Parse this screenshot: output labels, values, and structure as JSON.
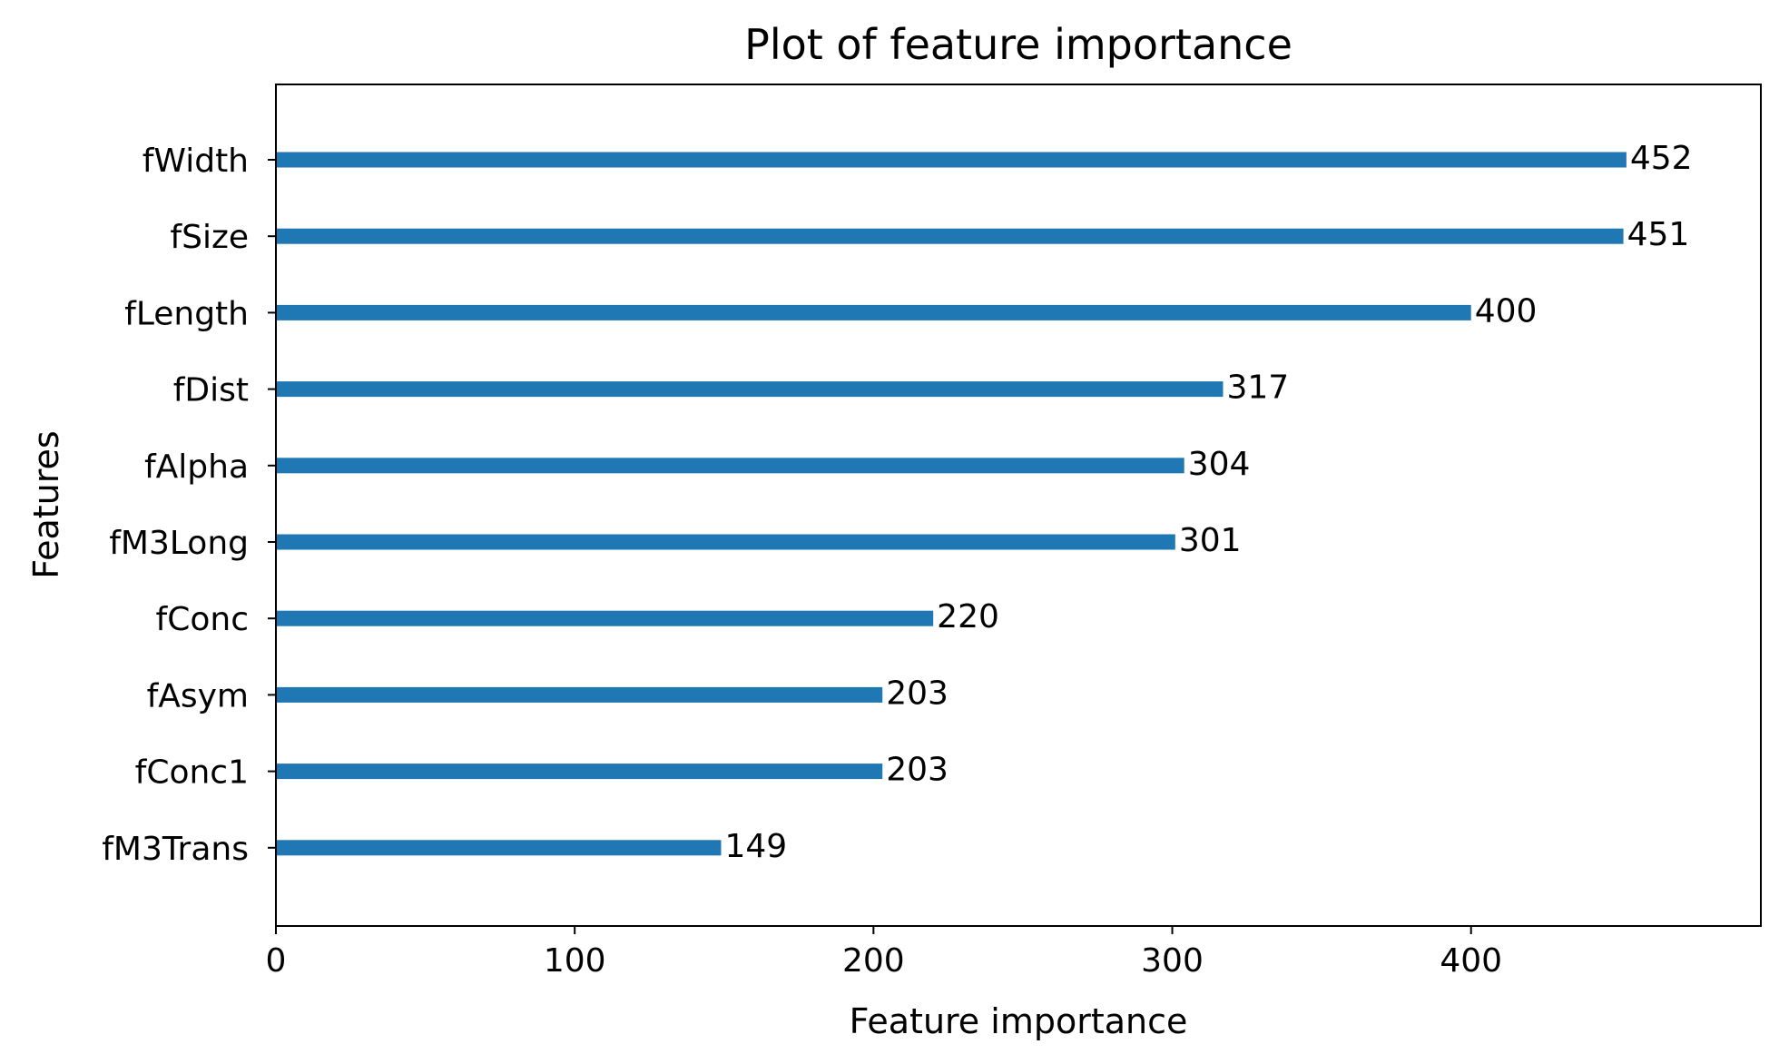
{
  "chart_data": {
    "type": "bar",
    "orientation": "horizontal",
    "title": "Plot of feature importance",
    "xlabel": "Feature importance",
    "ylabel": "Features",
    "categories": [
      "fWidth",
      "fSize",
      "fLength",
      "fDist",
      "fAlpha",
      "fM3Long",
      "fConc",
      "fAsym",
      "fConc1",
      "fM3Trans"
    ],
    "values": [
      452,
      451,
      400,
      317,
      304,
      301,
      220,
      203,
      203,
      149
    ],
    "xlim": [
      0,
      497
    ],
    "xticks": [
      "0",
      "100",
      "200",
      "300",
      "400"
    ],
    "bar_color": "#1f77b4",
    "grid": false,
    "legend": false
  }
}
